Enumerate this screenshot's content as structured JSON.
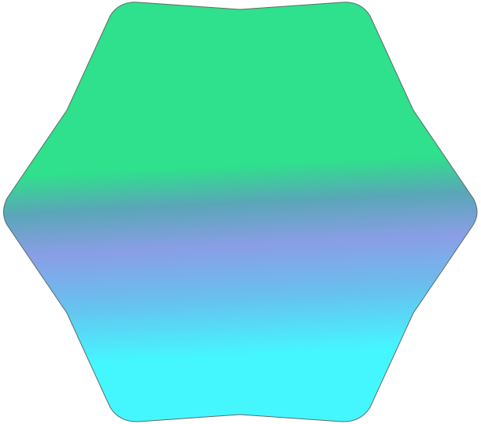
{
  "shape": {
    "kind": "rounded-hexagon",
    "stroke_color": "#5f6b6a",
    "gradient_stops": [
      {
        "offset": 0.0,
        "color": "#2fe08c"
      },
      {
        "offset": 0.39,
        "color": "#2fe08c"
      },
      {
        "offset": 0.48,
        "color": "#5aa6b8"
      },
      {
        "offset": 0.58,
        "color": "#8a9ee6"
      },
      {
        "offset": 0.7,
        "color": "#68c0ee"
      },
      {
        "offset": 0.84,
        "color": "#44f7ff"
      },
      {
        "offset": 1.0,
        "color": "#44f7ff"
      }
    ]
  }
}
